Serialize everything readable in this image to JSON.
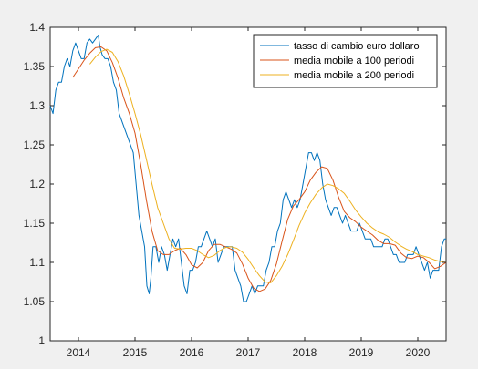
{
  "chart_data": {
    "type": "line",
    "title": "",
    "xlabel": "",
    "ylabel": "",
    "xlim": [
      2013.5,
      2020.5
    ],
    "ylim": [
      1.0,
      1.4
    ],
    "x_ticks": [
      {
        "value": 2014,
        "label": "2014"
      },
      {
        "value": 2015,
        "label": "2015"
      },
      {
        "value": 2016,
        "label": "2016"
      },
      {
        "value": 2017,
        "label": "2017"
      },
      {
        "value": 2018,
        "label": "2018"
      },
      {
        "value": 2019,
        "label": "2019"
      },
      {
        "value": 2020,
        "label": "2020"
      }
    ],
    "y_ticks": [
      {
        "value": 1.0,
        "label": "1"
      },
      {
        "value": 1.05,
        "label": "1.05"
      },
      {
        "value": 1.1,
        "label": "1.1"
      },
      {
        "value": 1.15,
        "label": "1.15"
      },
      {
        "value": 1.2,
        "label": "1.2"
      },
      {
        "value": 1.25,
        "label": "1.25"
      },
      {
        "value": 1.3,
        "label": "1.3"
      },
      {
        "value": 1.35,
        "label": "1.35"
      },
      {
        "value": 1.4,
        "label": "1.4"
      }
    ],
    "grid": false,
    "legend_position": "top-right",
    "series": [
      {
        "name": "tasso di cambio euro dollaro",
        "color": "#0072bd",
        "points": [
          [
            2013.5,
            1.3
          ],
          [
            2013.55,
            1.29
          ],
          [
            2013.6,
            1.32
          ],
          [
            2013.65,
            1.33
          ],
          [
            2013.7,
            1.33
          ],
          [
            2013.75,
            1.35
          ],
          [
            2013.8,
            1.36
          ],
          [
            2013.85,
            1.35
          ],
          [
            2013.9,
            1.37
          ],
          [
            2013.95,
            1.38
          ],
          [
            2014.0,
            1.37
          ],
          [
            2014.05,
            1.36
          ],
          [
            2014.1,
            1.36
          ],
          [
            2014.15,
            1.38
          ],
          [
            2014.2,
            1.385
          ],
          [
            2014.25,
            1.38
          ],
          [
            2014.3,
            1.385
          ],
          [
            2014.35,
            1.39
          ],
          [
            2014.38,
            1.375
          ],
          [
            2014.42,
            1.365
          ],
          [
            2014.47,
            1.36
          ],
          [
            2014.52,
            1.36
          ],
          [
            2014.57,
            1.35
          ],
          [
            2014.62,
            1.33
          ],
          [
            2014.67,
            1.32
          ],
          [
            2014.72,
            1.29
          ],
          [
            2014.77,
            1.28
          ],
          [
            2014.82,
            1.27
          ],
          [
            2014.87,
            1.26
          ],
          [
            2014.92,
            1.25
          ],
          [
            2014.97,
            1.24
          ],
          [
            2015.02,
            1.2
          ],
          [
            2015.07,
            1.16
          ],
          [
            2015.12,
            1.14
          ],
          [
            2015.17,
            1.12
          ],
          [
            2015.21,
            1.07
          ],
          [
            2015.25,
            1.06
          ],
          [
            2015.28,
            1.08
          ],
          [
            2015.32,
            1.12
          ],
          [
            2015.37,
            1.12
          ],
          [
            2015.42,
            1.1
          ],
          [
            2015.47,
            1.12
          ],
          [
            2015.52,
            1.11
          ],
          [
            2015.57,
            1.09
          ],
          [
            2015.62,
            1.11
          ],
          [
            2015.67,
            1.13
          ],
          [
            2015.72,
            1.12
          ],
          [
            2015.77,
            1.13
          ],
          [
            2015.82,
            1.1
          ],
          [
            2015.87,
            1.07
          ],
          [
            2015.92,
            1.06
          ],
          [
            2015.97,
            1.09
          ],
          [
            2016.02,
            1.09
          ],
          [
            2016.07,
            1.1
          ],
          [
            2016.12,
            1.12
          ],
          [
            2016.17,
            1.12
          ],
          [
            2016.22,
            1.13
          ],
          [
            2016.27,
            1.14
          ],
          [
            2016.32,
            1.13
          ],
          [
            2016.37,
            1.12
          ],
          [
            2016.42,
            1.13
          ],
          [
            2016.47,
            1.1
          ],
          [
            2016.52,
            1.11
          ],
          [
            2016.57,
            1.12
          ],
          [
            2016.62,
            1.12
          ],
          [
            2016.67,
            1.12
          ],
          [
            2016.72,
            1.12
          ],
          [
            2016.77,
            1.09
          ],
          [
            2016.82,
            1.08
          ],
          [
            2016.87,
            1.07
          ],
          [
            2016.92,
            1.05
          ],
          [
            2016.97,
            1.05
          ],
          [
            2017.02,
            1.06
          ],
          [
            2017.07,
            1.07
          ],
          [
            2017.12,
            1.06
          ],
          [
            2017.17,
            1.07
          ],
          [
            2017.22,
            1.07
          ],
          [
            2017.27,
            1.07
          ],
          [
            2017.32,
            1.09
          ],
          [
            2017.37,
            1.1
          ],
          [
            2017.42,
            1.12
          ],
          [
            2017.47,
            1.12
          ],
          [
            2017.52,
            1.14
          ],
          [
            2017.57,
            1.15
          ],
          [
            2017.62,
            1.18
          ],
          [
            2017.67,
            1.19
          ],
          [
            2017.72,
            1.18
          ],
          [
            2017.77,
            1.17
          ],
          [
            2017.82,
            1.18
          ],
          [
            2017.87,
            1.17
          ],
          [
            2017.92,
            1.18
          ],
          [
            2017.97,
            1.2
          ],
          [
            2018.02,
            1.22
          ],
          [
            2018.07,
            1.24
          ],
          [
            2018.12,
            1.24
          ],
          [
            2018.17,
            1.23
          ],
          [
            2018.22,
            1.24
          ],
          [
            2018.27,
            1.23
          ],
          [
            2018.32,
            1.2
          ],
          [
            2018.37,
            1.18
          ],
          [
            2018.42,
            1.17
          ],
          [
            2018.47,
            1.16
          ],
          [
            2018.52,
            1.17
          ],
          [
            2018.57,
            1.17
          ],
          [
            2018.62,
            1.16
          ],
          [
            2018.67,
            1.15
          ],
          [
            2018.72,
            1.16
          ],
          [
            2018.77,
            1.15
          ],
          [
            2018.82,
            1.14
          ],
          [
            2018.87,
            1.14
          ],
          [
            2018.92,
            1.14
          ],
          [
            2018.97,
            1.15
          ],
          [
            2019.02,
            1.14
          ],
          [
            2019.07,
            1.13
          ],
          [
            2019.12,
            1.13
          ],
          [
            2019.17,
            1.13
          ],
          [
            2019.22,
            1.12
          ],
          [
            2019.27,
            1.12
          ],
          [
            2019.32,
            1.12
          ],
          [
            2019.37,
            1.12
          ],
          [
            2019.42,
            1.13
          ],
          [
            2019.47,
            1.13
          ],
          [
            2019.52,
            1.12
          ],
          [
            2019.57,
            1.11
          ],
          [
            2019.62,
            1.11
          ],
          [
            2019.67,
            1.1
          ],
          [
            2019.72,
            1.1
          ],
          [
            2019.77,
            1.1
          ],
          [
            2019.82,
            1.11
          ],
          [
            2019.87,
            1.11
          ],
          [
            2019.92,
            1.11
          ],
          [
            2019.97,
            1.12
          ],
          [
            2020.02,
            1.11
          ],
          [
            2020.07,
            1.1
          ],
          [
            2020.12,
            1.09
          ],
          [
            2020.17,
            1.1
          ],
          [
            2020.22,
            1.08
          ],
          [
            2020.27,
            1.09
          ],
          [
            2020.32,
            1.09
          ],
          [
            2020.37,
            1.09
          ],
          [
            2020.42,
            1.12
          ],
          [
            2020.47,
            1.13
          ],
          [
            2020.5,
            1.13
          ]
        ]
      },
      {
        "name": "media mobile a 100 periodi",
        "color": "#d95319",
        "points": [
          [
            2013.9,
            1.336
          ],
          [
            2014.0,
            1.347
          ],
          [
            2014.1,
            1.358
          ],
          [
            2014.2,
            1.367
          ],
          [
            2014.3,
            1.374
          ],
          [
            2014.4,
            1.375
          ],
          [
            2014.5,
            1.37
          ],
          [
            2014.6,
            1.355
          ],
          [
            2014.7,
            1.335
          ],
          [
            2014.8,
            1.31
          ],
          [
            2014.9,
            1.29
          ],
          [
            2015.0,
            1.265
          ],
          [
            2015.1,
            1.225
          ],
          [
            2015.2,
            1.18
          ],
          [
            2015.3,
            1.14
          ],
          [
            2015.4,
            1.115
          ],
          [
            2015.5,
            1.11
          ],
          [
            2015.6,
            1.11
          ],
          [
            2015.7,
            1.115
          ],
          [
            2015.8,
            1.118
          ],
          [
            2015.9,
            1.11
          ],
          [
            2016.0,
            1.097
          ],
          [
            2016.1,
            1.093
          ],
          [
            2016.2,
            1.1
          ],
          [
            2016.3,
            1.115
          ],
          [
            2016.4,
            1.123
          ],
          [
            2016.5,
            1.123
          ],
          [
            2016.6,
            1.12
          ],
          [
            2016.7,
            1.117
          ],
          [
            2016.8,
            1.112
          ],
          [
            2016.9,
            1.098
          ],
          [
            2017.0,
            1.08
          ],
          [
            2017.1,
            1.067
          ],
          [
            2017.2,
            1.063
          ],
          [
            2017.3,
            1.066
          ],
          [
            2017.4,
            1.077
          ],
          [
            2017.5,
            1.098
          ],
          [
            2017.6,
            1.127
          ],
          [
            2017.7,
            1.155
          ],
          [
            2017.8,
            1.172
          ],
          [
            2017.9,
            1.18
          ],
          [
            2018.0,
            1.19
          ],
          [
            2018.1,
            1.205
          ],
          [
            2018.2,
            1.215
          ],
          [
            2018.3,
            1.222
          ],
          [
            2018.4,
            1.22
          ],
          [
            2018.5,
            1.205
          ],
          [
            2018.6,
            1.183
          ],
          [
            2018.7,
            1.165
          ],
          [
            2018.8,
            1.157
          ],
          [
            2018.9,
            1.152
          ],
          [
            2019.0,
            1.145
          ],
          [
            2019.1,
            1.14
          ],
          [
            2019.2,
            1.135
          ],
          [
            2019.3,
            1.128
          ],
          [
            2019.4,
            1.124
          ],
          [
            2019.5,
            1.124
          ],
          [
            2019.6,
            1.122
          ],
          [
            2019.7,
            1.112
          ],
          [
            2019.8,
            1.106
          ],
          [
            2019.9,
            1.105
          ],
          [
            2020.0,
            1.108
          ],
          [
            2020.1,
            1.106
          ],
          [
            2020.2,
            1.1
          ],
          [
            2020.3,
            1.092
          ],
          [
            2020.4,
            1.095
          ],
          [
            2020.5,
            1.1
          ]
        ]
      },
      {
        "name": "media mobile a 200 periodi",
        "color": "#edb120",
        "points": [
          [
            2014.2,
            1.353
          ],
          [
            2014.3,
            1.362
          ],
          [
            2014.4,
            1.369
          ],
          [
            2014.5,
            1.372
          ],
          [
            2014.6,
            1.368
          ],
          [
            2014.7,
            1.356
          ],
          [
            2014.8,
            1.338
          ],
          [
            2014.9,
            1.315
          ],
          [
            2015.0,
            1.29
          ],
          [
            2015.1,
            1.263
          ],
          [
            2015.2,
            1.232
          ],
          [
            2015.3,
            1.2
          ],
          [
            2015.4,
            1.17
          ],
          [
            2015.5,
            1.15
          ],
          [
            2015.6,
            1.13
          ],
          [
            2015.7,
            1.118
          ],
          [
            2015.8,
            1.117
          ],
          [
            2015.9,
            1.118
          ],
          [
            2016.0,
            1.118
          ],
          [
            2016.1,
            1.115
          ],
          [
            2016.2,
            1.11
          ],
          [
            2016.3,
            1.106
          ],
          [
            2016.4,
            1.109
          ],
          [
            2016.5,
            1.115
          ],
          [
            2016.6,
            1.119
          ],
          [
            2016.7,
            1.12
          ],
          [
            2016.8,
            1.118
          ],
          [
            2016.9,
            1.113
          ],
          [
            2017.0,
            1.104
          ],
          [
            2017.1,
            1.093
          ],
          [
            2017.2,
            1.083
          ],
          [
            2017.3,
            1.075
          ],
          [
            2017.4,
            1.074
          ],
          [
            2017.5,
            1.083
          ],
          [
            2017.6,
            1.095
          ],
          [
            2017.7,
            1.11
          ],
          [
            2017.8,
            1.128
          ],
          [
            2017.9,
            1.147
          ],
          [
            2018.0,
            1.163
          ],
          [
            2018.1,
            1.176
          ],
          [
            2018.2,
            1.187
          ],
          [
            2018.3,
            1.195
          ],
          [
            2018.4,
            1.2
          ],
          [
            2018.5,
            1.198
          ],
          [
            2018.6,
            1.194
          ],
          [
            2018.7,
            1.188
          ],
          [
            2018.8,
            1.178
          ],
          [
            2018.9,
            1.167
          ],
          [
            2019.0,
            1.158
          ],
          [
            2019.1,
            1.15
          ],
          [
            2019.2,
            1.144
          ],
          [
            2019.3,
            1.139
          ],
          [
            2019.4,
            1.136
          ],
          [
            2019.5,
            1.132
          ],
          [
            2019.6,
            1.126
          ],
          [
            2019.7,
            1.121
          ],
          [
            2019.8,
            1.117
          ],
          [
            2019.9,
            1.114
          ],
          [
            2020.0,
            1.11
          ],
          [
            2020.1,
            1.108
          ],
          [
            2020.2,
            1.106
          ],
          [
            2020.3,
            1.103
          ],
          [
            2020.4,
            1.101
          ],
          [
            2020.5,
            1.1
          ]
        ]
      }
    ]
  }
}
